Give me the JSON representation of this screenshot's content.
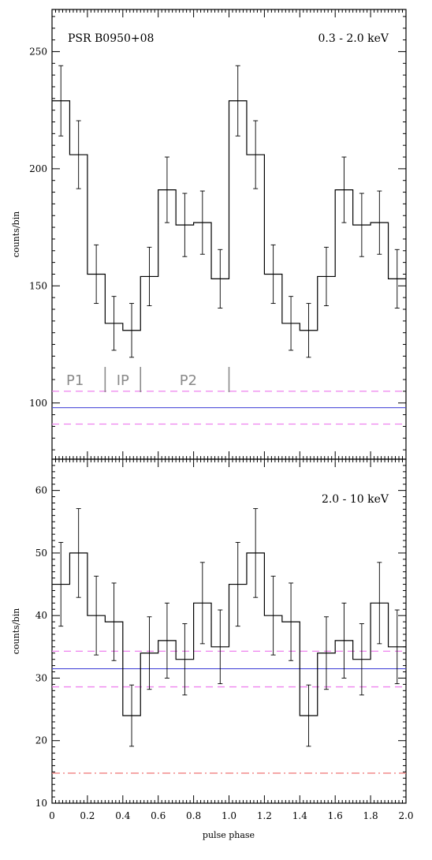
{
  "chart_data": [
    {
      "type": "step",
      "panel": "top",
      "title": "PSR B0950+08",
      "energy_label": "0.3 - 2.0 keV",
      "ylabel": "counts/bin",
      "xlabel": "",
      "xlim": [
        0,
        2.0
      ],
      "ylim": [
        76,
        268
      ],
      "y_ticks": [
        100,
        150,
        200,
        250
      ],
      "y_tick_labels": [
        "100",
        "150",
        "200",
        "250"
      ],
      "x_ticks": [
        0.0,
        0.2,
        0.4,
        0.6,
        0.8,
        1.0,
        1.2,
        1.4,
        1.6,
        1.8,
        2.0
      ],
      "x_tick_labels": [],
      "bin_width": 0.1,
      "values": [
        229,
        206,
        155,
        134,
        131,
        154,
        191,
        176,
        177,
        153,
        229,
        206,
        155,
        134,
        131,
        154,
        191,
        176,
        177,
        153
      ],
      "errors": [
        15,
        14.5,
        12.5,
        11.5,
        11.5,
        12.5,
        14,
        13.5,
        13.5,
        12.5,
        15,
        14.5,
        12.5,
        11.5,
        11.5,
        12.5,
        14,
        13.5,
        13.5,
        12.5
      ],
      "background_level": 98,
      "background_band": [
        91,
        105
      ],
      "phase_regions": [
        {
          "label": "P1",
          "x": 0.13
        },
        {
          "label": "IP",
          "x": 0.4
        },
        {
          "label": "P2",
          "x": 0.77
        }
      ],
      "region_dividers": [
        0.3,
        0.5,
        1.0
      ],
      "colors": {
        "background_line": "#4a4ad8",
        "band": "#ee82ee"
      }
    },
    {
      "type": "step",
      "panel": "bottom",
      "title": "",
      "energy_label": "2.0 - 10 keV",
      "ylabel": "counts/bin",
      "xlabel": "pulse phase",
      "xlim": [
        0,
        2.0
      ],
      "ylim": [
        10,
        65
      ],
      "y_ticks": [
        10,
        20,
        30,
        40,
        50,
        60
      ],
      "y_tick_labels": [
        "10",
        "20",
        "30",
        "40",
        "50",
        "60"
      ],
      "x_ticks": [
        0.0,
        0.2,
        0.4,
        0.6,
        0.8,
        1.0,
        1.2,
        1.4,
        1.6,
        1.8,
        2.0
      ],
      "x_tick_labels": [
        "0",
        "0.2",
        "0.4",
        "0.6",
        "0.8",
        "1.0",
        "1.2",
        "1.4",
        "1.6",
        "1.8",
        "2.0"
      ],
      "bin_width": 0.1,
      "values": [
        45,
        50,
        40,
        39,
        24,
        34,
        36,
        33,
        42,
        35,
        45,
        50,
        40,
        39,
        24,
        34,
        36,
        33,
        42,
        35
      ],
      "errors": [
        6.7,
        7.1,
        6.3,
        6.2,
        4.9,
        5.8,
        6,
        5.7,
        6.5,
        5.9,
        6.7,
        7.1,
        6.3,
        6.2,
        4.9,
        5.8,
        6,
        5.7,
        6.5,
        5.9
      ],
      "background_level": 31.5,
      "background_band": [
        28.6,
        34.3
      ],
      "reference_level": 14.8,
      "colors": {
        "background_line": "#4a4ad8",
        "band": "#ee82ee",
        "reference": "#f08080"
      }
    }
  ]
}
